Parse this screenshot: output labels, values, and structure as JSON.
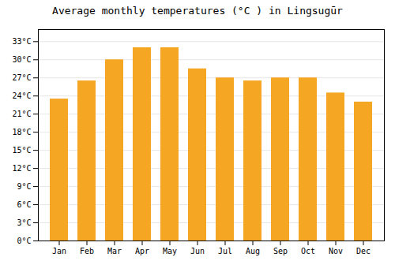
{
  "chart_data": {
    "type": "bar",
    "title": "Average monthly temperatures (°C ) in Lingsugūr",
    "categories": [
      "Jan",
      "Feb",
      "Mar",
      "Apr",
      "May",
      "Jun",
      "Jul",
      "Aug",
      "Sep",
      "Oct",
      "Nov",
      "Dec"
    ],
    "values": [
      23.5,
      26.5,
      30.0,
      32.0,
      32.0,
      28.5,
      27.0,
      26.5,
      27.0,
      27.0,
      24.5,
      23.0
    ],
    "color": "#F5A623",
    "ylim": [
      0,
      35
    ],
    "yticks": [
      {
        "value": 0,
        "label": "0°C"
      },
      {
        "value": 3,
        "label": "3°C"
      },
      {
        "value": 6,
        "label": "6°C"
      },
      {
        "value": 9,
        "label": "9°C"
      },
      {
        "value": 12,
        "label": "12°C"
      },
      {
        "value": 15,
        "label": "15°C"
      },
      {
        "value": 18,
        "label": "18°C"
      },
      {
        "value": 21,
        "label": "21°C"
      },
      {
        "value": 24,
        "label": "24°C"
      },
      {
        "value": 27,
        "label": "27°C"
      },
      {
        "value": 30,
        "label": "30°C"
      },
      {
        "value": 33,
        "label": "33°C"
      }
    ],
    "grid": true
  }
}
